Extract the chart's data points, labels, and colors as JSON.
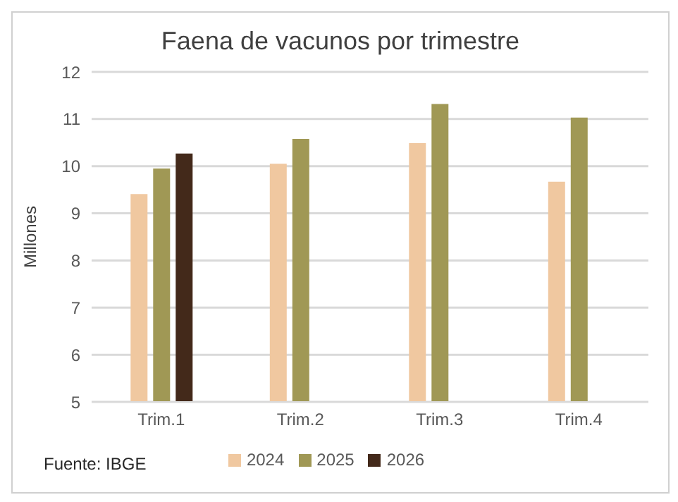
{
  "chart_data": {
    "type": "bar",
    "title": "Faena de vacunos por trimestre",
    "ylabel": "Millones",
    "categories": [
      "Trim.1",
      "Trim.2",
      "Trim.3",
      "Trim.4"
    ],
    "series": [
      {
        "name": "2024",
        "color": "#f0c8a0",
        "values": [
          9.41,
          10.05,
          10.49,
          9.67
        ]
      },
      {
        "name": "2025",
        "color": "#a09855",
        "values": [
          9.95,
          10.58,
          11.32,
          11.03
        ]
      },
      {
        "name": "2026",
        "color": "#43291a",
        "values": [
          10.27,
          null,
          null,
          null
        ]
      }
    ],
    "ylim": [
      5,
      12
    ],
    "yticks": [
      5,
      6,
      7,
      8,
      9,
      10,
      11,
      12
    ],
    "grid": "y",
    "legend": "bottom",
    "annotations": [
      "Fuente: IBGE"
    ]
  }
}
